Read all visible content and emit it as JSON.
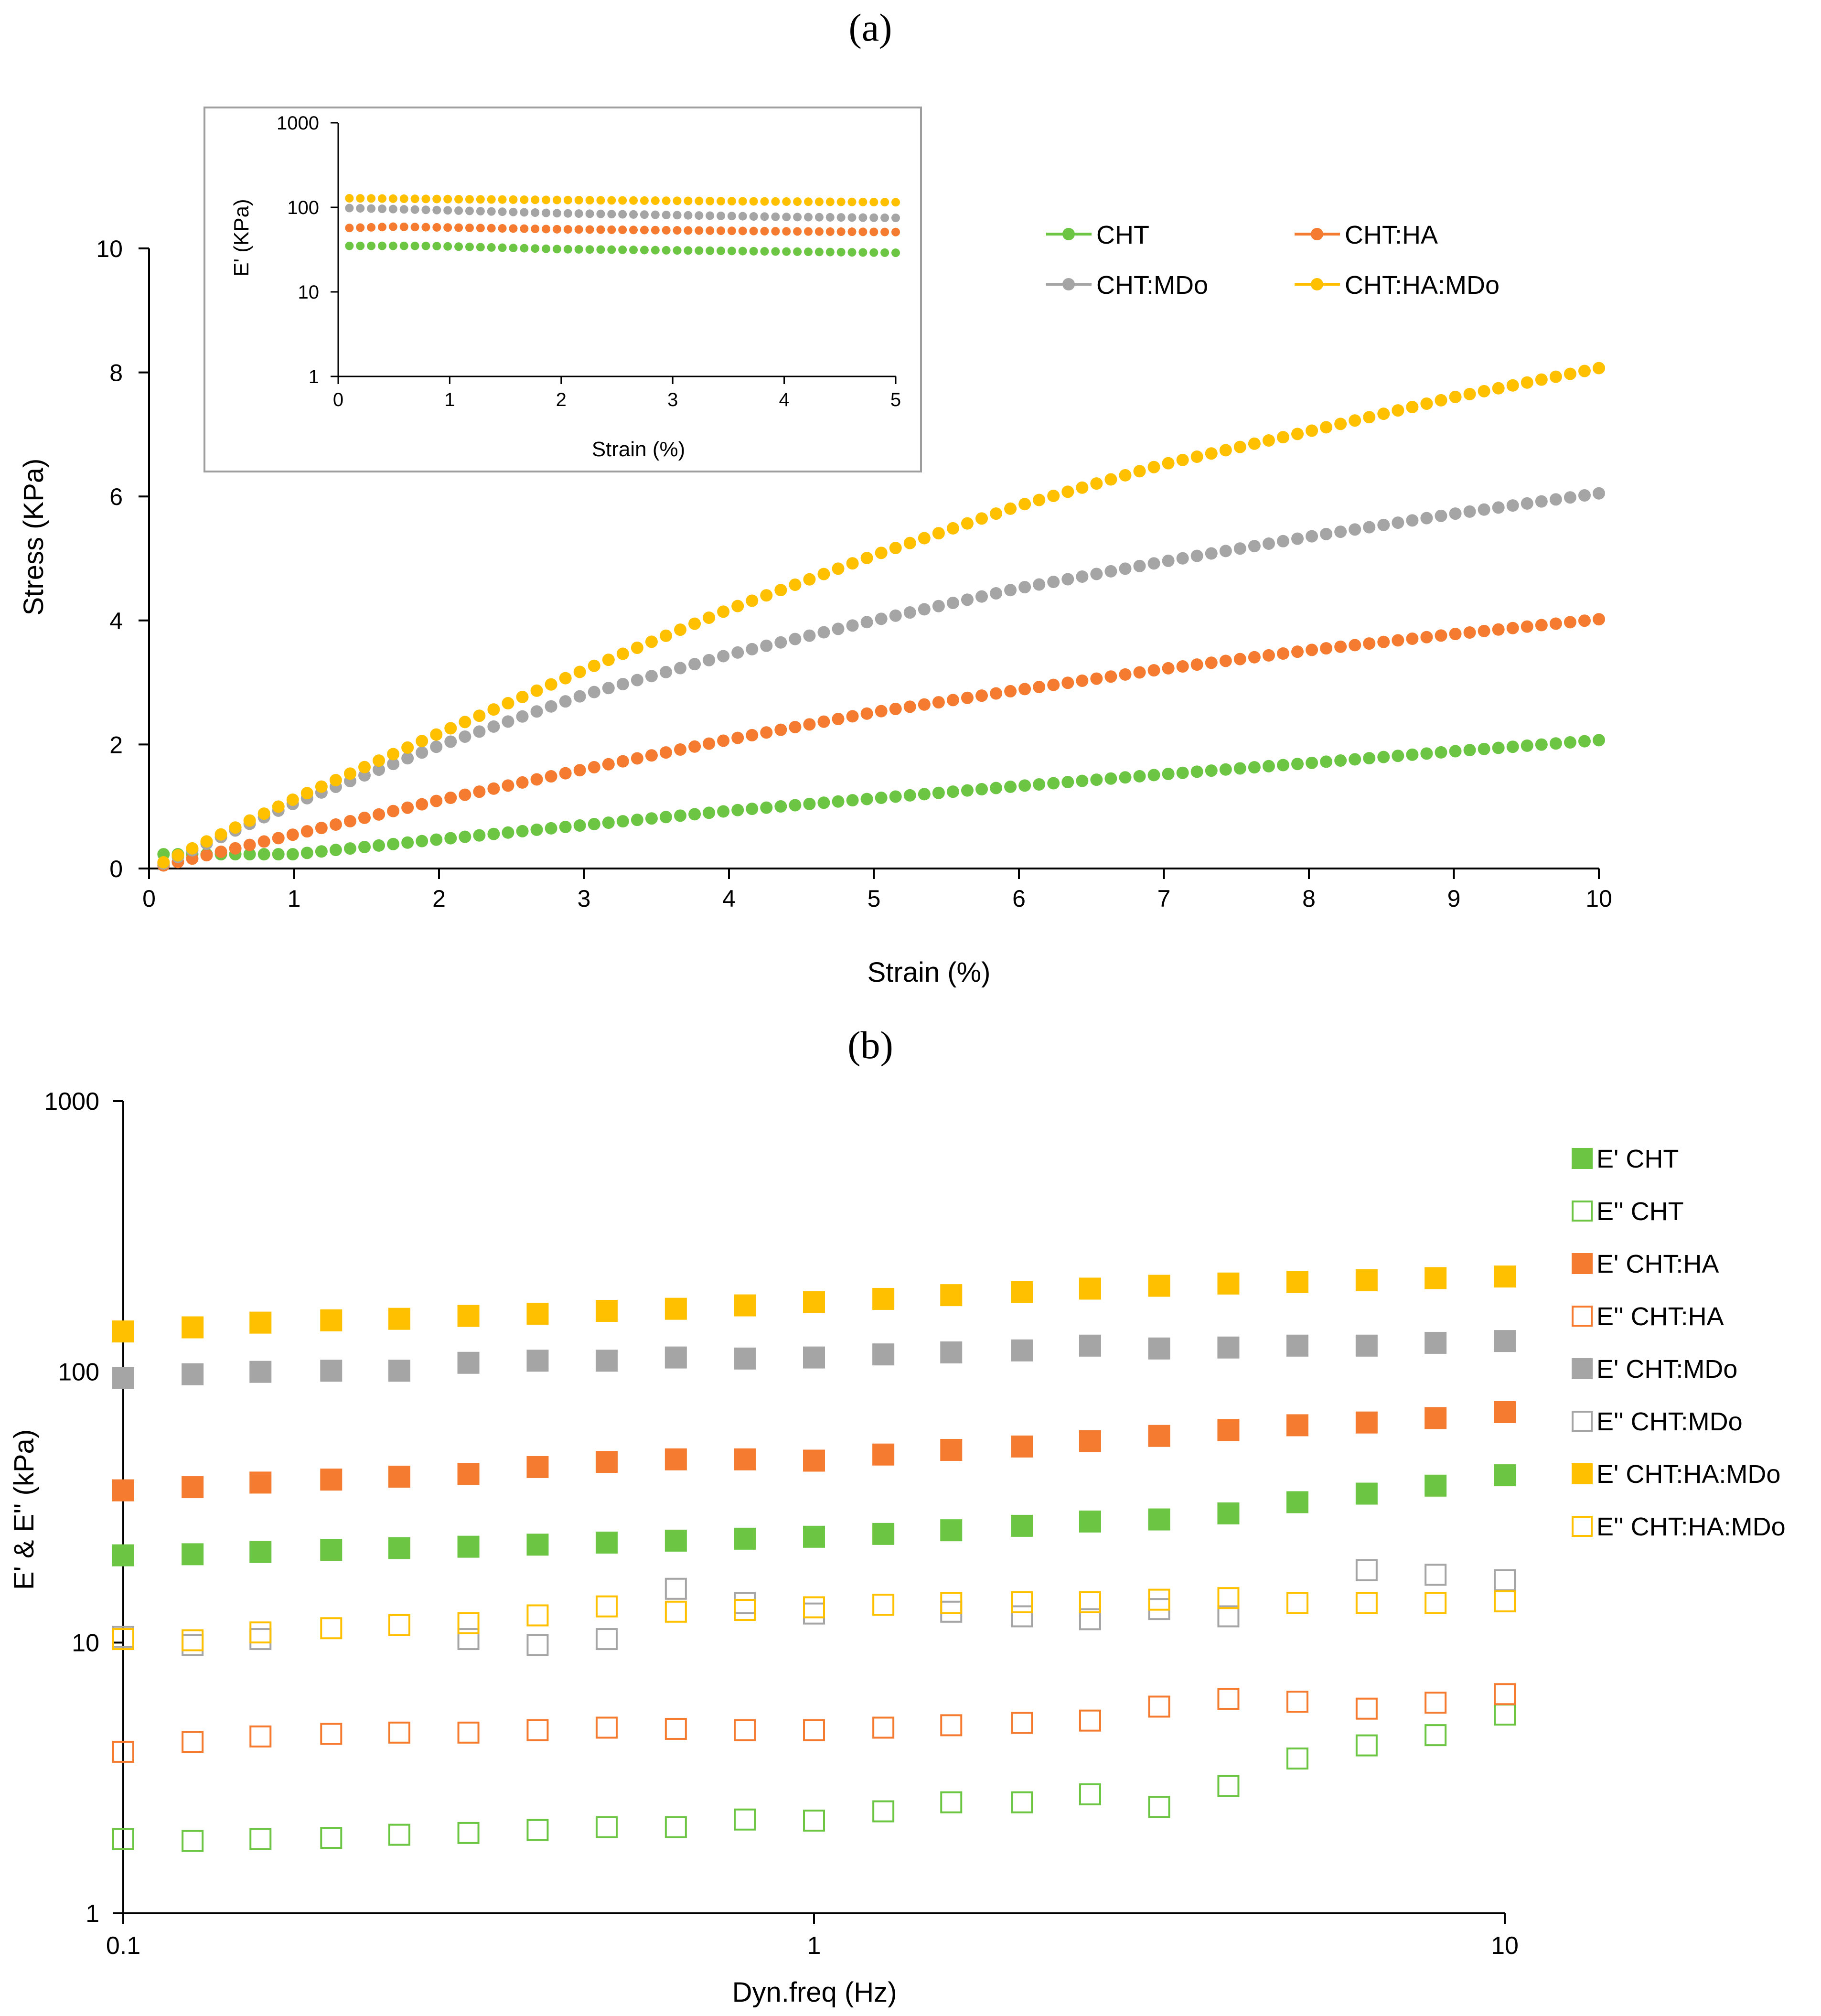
{
  "panel_a_label": "(a)",
  "panel_b_label": "(b)",
  "chart_data": [
    {
      "type": "scatter",
      "title": "",
      "xlabel": "Strain (%)",
      "ylabel": "Stress (KPa)",
      "xlim": [
        0,
        10
      ],
      "ylim": [
        0,
        10
      ],
      "xticks": [
        "0",
        "1",
        "2",
        "3",
        "4",
        "5",
        "6",
        "7",
        "8",
        "9",
        "10"
      ],
      "yticks": [
        "0",
        "2",
        "4",
        "6",
        "8",
        "10"
      ],
      "grid": false,
      "legend_position": "top-right",
      "series": [
        {
          "name": "CHT",
          "color": "#6cc644",
          "x": [
            0.1,
            10
          ],
          "y_curve": "linear",
          "y": [
            0.02,
            2.07
          ],
          "x_sample": [
            1,
            2,
            3,
            4,
            5,
            6,
            7,
            8,
            9,
            10
          ],
          "y_sample": [
            0.23,
            0.47,
            0.7,
            0.93,
            1.13,
            1.33,
            1.52,
            1.7,
            1.89,
            2.07
          ]
        },
        {
          "name": "CHT:HA",
          "color": "#f47b30",
          "x_sample": [
            0.1,
            1,
            2,
            3,
            4,
            5,
            6,
            7,
            8,
            9,
            10
          ],
          "y_sample": [
            0.05,
            0.55,
            1.1,
            1.6,
            2.08,
            2.52,
            2.88,
            3.22,
            3.52,
            3.78,
            4.02
          ]
        },
        {
          "name": "CHT:MDo",
          "color": "#a5a5a5",
          "x_sample": [
            0.1,
            1,
            2,
            3,
            4,
            5,
            6,
            7,
            8,
            9,
            10
          ],
          "y_sample": [
            0.08,
            1.05,
            1.98,
            2.8,
            3.45,
            4.0,
            4.52,
            4.95,
            5.35,
            5.72,
            6.05
          ]
        },
        {
          "name": "CHT:HA:MDo",
          "color": "#ffc000",
          "x_sample": [
            0.1,
            1,
            2,
            3,
            4,
            5,
            6,
            7,
            8,
            9,
            10
          ],
          "y_sample": [
            0.1,
            1.12,
            2.18,
            3.2,
            4.18,
            5.05,
            5.85,
            6.52,
            7.05,
            7.6,
            8.07
          ]
        }
      ]
    },
    {
      "type": "scatter",
      "title": "",
      "xlabel": "Strain (%)",
      "ylabel": "E' (KPa)",
      "xlim": [
        0,
        5
      ],
      "ylim": [
        1,
        1000
      ],
      "yscale": "log",
      "xticks": [
        "0",
        "1",
        "2",
        "3",
        "4",
        "5"
      ],
      "yticks": [
        "1",
        "10",
        "100",
        "1000"
      ],
      "grid": false,
      "series": [
        {
          "name": "CHT",
          "color": "#6cc644",
          "x_sample": [
            0.1,
            0.8,
            2,
            4,
            5
          ],
          "y_sample": [
            35,
            35,
            32,
            30,
            29
          ]
        },
        {
          "name": "CHT:HA",
          "color": "#f47b30",
          "x_sample": [
            0.1,
            0.5,
            2,
            4,
            5
          ],
          "y_sample": [
            57,
            59,
            55,
            52,
            51
          ]
        },
        {
          "name": "CHT:MDo",
          "color": "#a5a5a5",
          "x_sample": [
            0.1,
            1,
            2,
            4,
            5
          ],
          "y_sample": [
            98,
            92,
            85,
            77,
            75
          ]
        },
        {
          "name": "CHT:HA:MDo",
          "color": "#ffc000",
          "x_sample": [
            0.1,
            1,
            2,
            4,
            5
          ],
          "y_sample": [
            128,
            125,
            122,
            117,
            115
          ]
        }
      ]
    },
    {
      "type": "scatter",
      "title": "",
      "xlabel": "Dyn.freq (Hz)",
      "ylabel": "E' & E'' (kPa)",
      "xscale": "log",
      "yscale": "log",
      "xlim": [
        0.1,
        10
      ],
      "ylim": [
        1,
        1000
      ],
      "xticks": [
        "0.1",
        "1",
        "10"
      ],
      "yticks": [
        "1",
        "10",
        "100",
        "1000"
      ],
      "grid": false,
      "legend_position": "right",
      "x": [
        0.1,
        0.126,
        0.158,
        0.2,
        0.251,
        0.316,
        0.398,
        0.501,
        0.631,
        0.794,
        1.0,
        1.26,
        1.58,
        2.0,
        2.51,
        3.16,
        3.98,
        5.01,
        6.31,
        7.94,
        10.0
      ],
      "series": [
        {
          "name": "E' CHT",
          "color": "#6cc644",
          "filled": true,
          "values": [
            21,
            21.2,
            21.6,
            22,
            22.3,
            22.6,
            23,
            23.4,
            23.8,
            24.2,
            24.6,
            25.2,
            26,
            27,
            28,
            28.5,
            30,
            33,
            35.5,
            38,
            41.5
          ]
        },
        {
          "name": "E'' CHT",
          "color": "#6cc644",
          "filled": false,
          "values": [
            1.88,
            1.85,
            1.88,
            1.9,
            1.95,
            1.98,
            2.03,
            2.08,
            2.08,
            2.22,
            2.2,
            2.38,
            2.57,
            2.57,
            2.75,
            2.47,
            2.95,
            3.73,
            4.17,
            4.55,
            5.42
          ]
        },
        {
          "name": "E' CHT:HA",
          "color": "#f47b30",
          "filled": true,
          "values": [
            36.5,
            37.5,
            39,
            40,
            41,
            42,
            44.5,
            46.5,
            47.5,
            47.5,
            47,
            49.5,
            51.5,
            53,
            55.5,
            58,
            61,
            63.5,
            65,
            67.5,
            71
          ]
        },
        {
          "name": "E'' CHT:HA",
          "color": "#f47b30",
          "filled": false,
          "values": [
            3.95,
            4.3,
            4.5,
            4.6,
            4.65,
            4.65,
            4.75,
            4.85,
            4.8,
            4.75,
            4.75,
            4.85,
            4.95,
            5.05,
            5.15,
            5.8,
            6.2,
            6.05,
            5.7,
            6.0,
            6.45
          ]
        },
        {
          "name": "E' CHT:MDo",
          "color": "#a5a5a5",
          "filled": true,
          "values": [
            95,
            98,
            100,
            101,
            101,
            108,
            110,
            110,
            113,
            112,
            113,
            116,
            118,
            120,
            125,
            122,
            123,
            125,
            125,
            128,
            130
          ]
        },
        {
          "name": "E'' CHT:MDo",
          "color": "#a5a5a5",
          "filled": false,
          "values": [
            10.5,
            9.8,
            10.3,
            null,
            null,
            10.3,
            9.8,
            10.3,
            15.8,
            14,
            12.8,
            null,
            13,
            12.5,
            12.2,
            13.3,
            12.5,
            null,
            18.5,
            17.8,
            17
          ]
        },
        {
          "name": "E' CHT:HA:MDo",
          "color": "#ffc000",
          "filled": true,
          "values": [
            141,
            146,
            152,
            155,
            157,
            161,
            164,
            168,
            171,
            176,
            181,
            186,
            192,
            197,
            203,
            208,
            212,
            215,
            218,
            222,
            225
          ]
        },
        {
          "name": "E'' CHT:HA:MDo",
          "color": "#ffc000",
          "filled": false,
          "values": [
            10.3,
            10.2,
            10.9,
            11.3,
            11.6,
            11.8,
            12.6,
            13.6,
            13,
            13.2,
            13.5,
            13.8,
            14,
            14.1,
            14.1,
            14.4,
            14.6,
            14,
            14,
            14,
            14.2
          ]
        }
      ]
    }
  ]
}
